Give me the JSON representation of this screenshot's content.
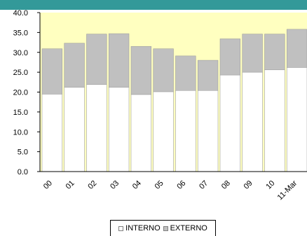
{
  "chart_data": {
    "type": "bar",
    "stacked": true,
    "categories": [
      "00",
      "01",
      "02",
      "03",
      "04",
      "05",
      "06",
      "07",
      "08",
      "09",
      "10",
      "11-Mar"
    ],
    "series": [
      {
        "name": "INTERNO",
        "values": [
          19.5,
          21.2,
          21.9,
          21.2,
          19.4,
          20.1,
          20.4,
          20.4,
          24.3,
          25.0,
          25.6,
          26.2
        ],
        "color": "#ffffff"
      },
      {
        "name": "EXTERNO",
        "values": [
          11.4,
          11.1,
          12.7,
          13.5,
          12.1,
          10.8,
          8.7,
          7.6,
          9.1,
          9.6,
          9.0,
          9.6
        ],
        "color": "#c0c0c0"
      }
    ],
    "ylim": [
      0,
      40
    ],
    "yticks": [
      "0.0",
      "5.0",
      "10.0",
      "15.0",
      "20.0",
      "25.0",
      "30.0",
      "35.0",
      "40.0"
    ],
    "plot_background": "#ffffc0",
    "top_band_color": "#339999",
    "legend_position": "bottom"
  },
  "legend": {
    "interno": "INTERNO",
    "externo": "EXTERNO"
  }
}
